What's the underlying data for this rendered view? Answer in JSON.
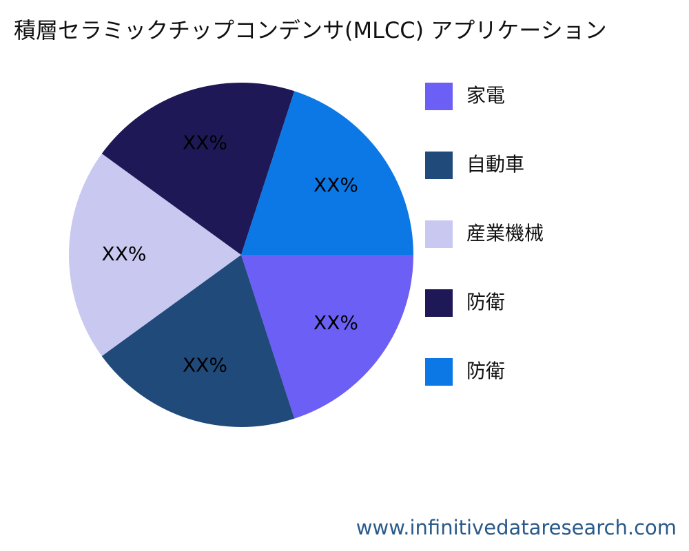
{
  "chart_data": {
    "type": "pie",
    "title": "積層セラミックチップコンデンサ(MLCC) アプリケーション",
    "categories": [
      "家電",
      "自動車",
      "産業機械",
      "防衛",
      "防衛"
    ],
    "values": [
      20,
      20,
      20,
      20,
      20
    ],
    "value_labels": [
      "XX%",
      "XX%",
      "XX%",
      "XX%",
      "XX%"
    ],
    "colors": [
      "#6c5ff5",
      "#1f4a7a",
      "#c9c8f0",
      "#1e1856",
      "#0b78e6"
    ],
    "legend": "right",
    "watermark": "www.infinitivedataresearch.com"
  }
}
